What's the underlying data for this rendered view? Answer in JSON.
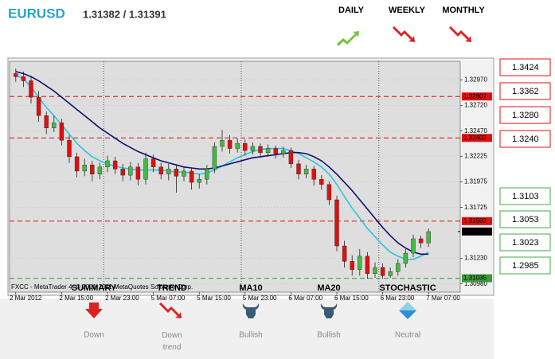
{
  "header": {
    "symbol": "EURUSD",
    "quote": "1.31382 / 1.31391"
  },
  "timeframes": [
    {
      "label": "DAILY",
      "direction": "up"
    },
    {
      "label": "WEEKLY",
      "direction": "down"
    },
    {
      "label": "MONTHLY",
      "direction": "down"
    }
  ],
  "chart_data": {
    "type": "candlestick",
    "copyright": "FXCC - MetaTrader 4, © 2001-2011 MetaQuotes Software Corp.",
    "categories": [
      "2 Mar 2012",
      null,
      null,
      null,
      null,
      null,
      "2 Mar 15:00",
      null,
      null,
      null,
      null,
      null,
      "2 Mar 23:00",
      null,
      null,
      null,
      null,
      null,
      "5 Mar 07:00",
      null,
      null,
      null,
      null,
      null,
      "5 Mar 15:00",
      null,
      null,
      null,
      null,
      null,
      "5 Mar 23:00",
      null,
      null,
      null,
      null,
      null,
      "6 Mar 07:00",
      null,
      null,
      null,
      null,
      null,
      "6 Mar 15:00",
      null,
      null,
      null,
      null,
      null,
      "6 Mar 23:00",
      null,
      null,
      null,
      null,
      null,
      "7 Mar 07:00"
    ],
    "open": [
      1.3303,
      1.33,
      1.3296,
      1.328,
      1.3262,
      1.325,
      1.3255,
      1.3238,
      1.3222,
      1.3208,
      1.3214,
      1.3205,
      1.3212,
      1.3218,
      1.321,
      1.3204,
      1.3212,
      1.32,
      1.322,
      1.3212,
      1.3205,
      1.321,
      1.3203,
      1.3208,
      1.3197,
      1.32,
      1.321,
      1.3232,
      1.3238,
      1.323,
      1.3235,
      1.3228,
      1.3232,
      1.3226,
      1.323,
      1.3225,
      1.3228,
      1.3215,
      1.3205,
      1.321,
      1.32,
      1.3195,
      1.318,
      1.3135,
      1.312,
      1.3112,
      1.3125,
      1.3108,
      1.3114,
      1.3106,
      1.311,
      1.3118,
      1.3128,
      1.3142,
      1.3138
    ],
    "high": [
      1.3308,
      1.3305,
      1.3301,
      1.3286,
      1.3266,
      1.3262,
      1.3259,
      1.3243,
      1.3226,
      1.322,
      1.3218,
      1.3216,
      1.3223,
      1.3222,
      1.3215,
      1.3217,
      1.3216,
      1.3226,
      1.3224,
      1.3216,
      1.3215,
      1.3214,
      1.3212,
      1.3211,
      1.3205,
      1.3214,
      1.3236,
      1.3248,
      1.3243,
      1.324,
      1.3239,
      1.3236,
      1.3235,
      1.3234,
      1.3233,
      1.3232,
      1.3231,
      1.3219,
      1.3214,
      1.3213,
      1.3204,
      1.3198,
      1.3184,
      1.314,
      1.3126,
      1.3132,
      1.3129,
      1.3119,
      1.3118,
      1.3114,
      1.3122,
      1.3132,
      1.3146,
      1.3145,
      1.3152
    ],
    "low": [
      1.3295,
      1.329,
      1.3274,
      1.3256,
      1.3244,
      1.3246,
      1.3233,
      1.3216,
      1.3202,
      1.3203,
      1.3198,
      1.32,
      1.3207,
      1.3205,
      1.3198,
      1.3199,
      1.3194,
      1.3195,
      1.3207,
      1.32,
      1.3199,
      1.3187,
      1.3198,
      1.319,
      1.3191,
      1.3195,
      1.3206,
      1.3227,
      1.3225,
      1.3226,
      1.3223,
      1.3224,
      1.3221,
      1.3222,
      1.322,
      1.3221,
      1.3211,
      1.32,
      1.3201,
      1.3194,
      1.319,
      1.3175,
      1.313,
      1.3114,
      1.3106,
      1.3106,
      1.3103,
      1.3104,
      1.3103,
      1.3104,
      1.3106,
      1.3114,
      1.3124,
      1.3133,
      1.3134
    ],
    "close": [
      1.33,
      1.3296,
      1.328,
      1.3262,
      1.325,
      1.3255,
      1.3238,
      1.3222,
      1.3208,
      1.3214,
      1.3205,
      1.3212,
      1.3218,
      1.321,
      1.3204,
      1.3212,
      1.32,
      1.322,
      1.3212,
      1.3205,
      1.321,
      1.3203,
      1.3208,
      1.3197,
      1.32,
      1.321,
      1.3232,
      1.3238,
      1.323,
      1.3235,
      1.3228,
      1.3232,
      1.3226,
      1.323,
      1.3225,
      1.3228,
      1.3215,
      1.3205,
      1.321,
      1.32,
      1.3195,
      1.318,
      1.3135,
      1.312,
      1.3112,
      1.3125,
      1.3108,
      1.3114,
      1.3106,
      1.311,
      1.3118,
      1.3128,
      1.3142,
      1.3138,
      1.3149
    ],
    "up_color": "#44bb44",
    "down_color": "#e01010",
    "lines": [
      {
        "color": "#2fc4d8",
        "values": [
          1.3302,
          1.3298,
          1.329,
          1.328,
          1.327,
          1.3262,
          1.3253,
          1.3244,
          1.3235,
          1.3228,
          1.3222,
          1.3218,
          1.3215,
          1.3213,
          1.3211,
          1.321,
          1.3209,
          1.3209,
          1.3209,
          1.3209,
          1.3208,
          1.3207,
          1.3207,
          1.3206,
          1.3205,
          1.3206,
          1.3209,
          1.3213,
          1.3217,
          1.3221,
          1.3224,
          1.3227,
          1.3229,
          1.323,
          1.323,
          1.323,
          1.3228,
          1.3225,
          1.3221,
          1.3217,
          1.3212,
          1.3205,
          1.3195,
          1.3183,
          1.3172,
          1.3162,
          1.3152,
          1.3144,
          1.3136,
          1.3129,
          1.3125,
          1.3122,
          1.3122,
          1.3125,
          1.3129
        ]
      },
      {
        "color": "#10106e",
        "values": [
          1.3305,
          1.3303,
          1.33,
          1.3296,
          1.3291,
          1.3286,
          1.328,
          1.3274,
          1.3268,
          1.3262,
          1.3256,
          1.325,
          1.3245,
          1.324,
          1.3235,
          1.3231,
          1.3227,
          1.3224,
          1.3221,
          1.3218,
          1.3216,
          1.3214,
          1.3212,
          1.3211,
          1.321,
          1.321,
          1.3211,
          1.3213,
          1.3215,
          1.3217,
          1.3219,
          1.3221,
          1.3222,
          1.3223,
          1.3224,
          1.3225,
          1.3226,
          1.3226,
          1.3225,
          1.3222,
          1.3218,
          1.3212,
          1.3205,
          1.3197,
          1.3189,
          1.318,
          1.3171,
          1.3162,
          1.3153,
          1.3145,
          1.3138,
          1.3133,
          1.3129,
          1.3127,
          1.3127
        ]
      }
    ],
    "ylim": [
      1.309,
      1.3315
    ],
    "yticks": [
      {
        "value": 1.3297,
        "label": "1.32970"
      },
      {
        "value": 1.3272,
        "label": "1.32720"
      },
      {
        "value": 1.3247,
        "label": "1.32470"
      },
      1.32225,
      1.31975,
      1.31725,
      {
        "value": 1.3123,
        "label": "1.31230"
      },
      {
        "value": 1.3098,
        "label": "1.30980"
      }
    ],
    "price_lines": [
      {
        "value": 1.32807,
        "color": "#e01010"
      },
      {
        "value": 1.32403,
        "color": "#e01010"
      },
      {
        "value": 1.31592,
        "color": "#e01010"
      },
      {
        "value": 1.31035,
        "color": "#3a9a3a"
      }
    ],
    "bid": 1.31491
  },
  "levels": {
    "resistance": [
      1.3424,
      1.3362,
      {
        "value": 1.328,
        "label": "1.3280"
      },
      {
        "value": 1.324,
        "label": "1.3240"
      }
    ],
    "support": [
      1.3103,
      1.3053,
      1.3023,
      1.2985
    ]
  },
  "summary": [
    {
      "title": "SUMMARY",
      "status": "Down"
    },
    {
      "title": "TREND",
      "status": "Down trend"
    },
    {
      "title": "MA10",
      "status": "Bullish"
    },
    {
      "title": "MA20",
      "status": "Bullish"
    },
    {
      "title": "STOCHASTIC",
      "status": "Neutral"
    }
  ]
}
